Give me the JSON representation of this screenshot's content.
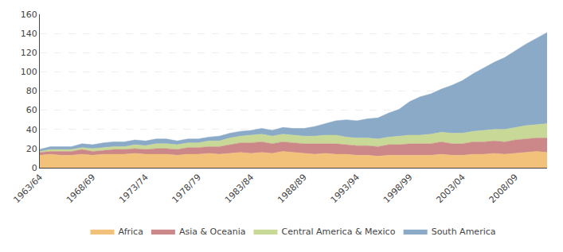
{
  "chart_data": {
    "type": "area",
    "stacked": true,
    "categories": [
      "1963/64",
      null,
      null,
      null,
      null,
      "1968/69",
      null,
      null,
      null,
      null,
      "1973/74",
      null,
      null,
      null,
      null,
      "1978/79",
      null,
      null,
      null,
      null,
      "1983/84",
      null,
      null,
      null,
      null,
      "1988/89",
      null,
      null,
      null,
      null,
      "1993/94",
      null,
      null,
      null,
      null,
      "1998/99",
      null,
      null,
      null,
      null,
      "2003/04",
      null,
      null,
      null,
      null,
      "2008/09",
      null,
      null,
      null
    ],
    "series": [
      {
        "name": "Africa",
        "color": "#F2C27A",
        "values": [
          13,
          14,
          13,
          13,
          14,
          13,
          14,
          14,
          14,
          15,
          14,
          14,
          14,
          13,
          14,
          14,
          15,
          14,
          15,
          16,
          15,
          16,
          15,
          17,
          16,
          15,
          14,
          15,
          14,
          14,
          13,
          13,
          12,
          13,
          13,
          13,
          13,
          13,
          14,
          13,
          13,
          14,
          14,
          15,
          14,
          15,
          16,
          17,
          16
        ]
      },
      {
        "name": "Asia & Oceania",
        "color": "#CC8888",
        "values": [
          3,
          3,
          4,
          4,
          5,
          4,
          4,
          5,
          5,
          5,
          5,
          6,
          6,
          6,
          7,
          7,
          7,
          8,
          9,
          10,
          11,
          11,
          10,
          10,
          10,
          10,
          11,
          10,
          11,
          10,
          10,
          10,
          10,
          11,
          11,
          12,
          12,
          12,
          13,
          12,
          12,
          13,
          13,
          13,
          13,
          14,
          14,
          14,
          15
        ]
      },
      {
        "name": "Central America & Mexico",
        "color": "#C8D896",
        "values": [
          1,
          2,
          2,
          2,
          2,
          3,
          3,
          3,
          3,
          4,
          4,
          5,
          5,
          5,
          5,
          5,
          6,
          6,
          7,
          7,
          8,
          8,
          8,
          8,
          8,
          8,
          8,
          9,
          9,
          8,
          8,
          8,
          8,
          8,
          9,
          9,
          9,
          10,
          10,
          11,
          11,
          11,
          12,
          12,
          13,
          13,
          14,
          14,
          15
        ]
      },
      {
        "name": "South America",
        "color": "#8AAAC8",
        "values": [
          2,
          3,
          3,
          3,
          4,
          4,
          5,
          5,
          5,
          5,
          5,
          5,
          5,
          4,
          4,
          4,
          4,
          5,
          5,
          5,
          5,
          6,
          6,
          7,
          7,
          8,
          10,
          12,
          15,
          18,
          18,
          20,
          22,
          25,
          28,
          35,
          40,
          42,
          45,
          50,
          55,
          60,
          65,
          70,
          75,
          80,
          85,
          90,
          95
        ]
      }
    ],
    "ylim": [
      0,
      160
    ],
    "yticks": [
      0,
      20,
      40,
      60,
      80,
      100,
      120,
      140,
      160
    ],
    "grid": true,
    "legend": "bottom"
  }
}
